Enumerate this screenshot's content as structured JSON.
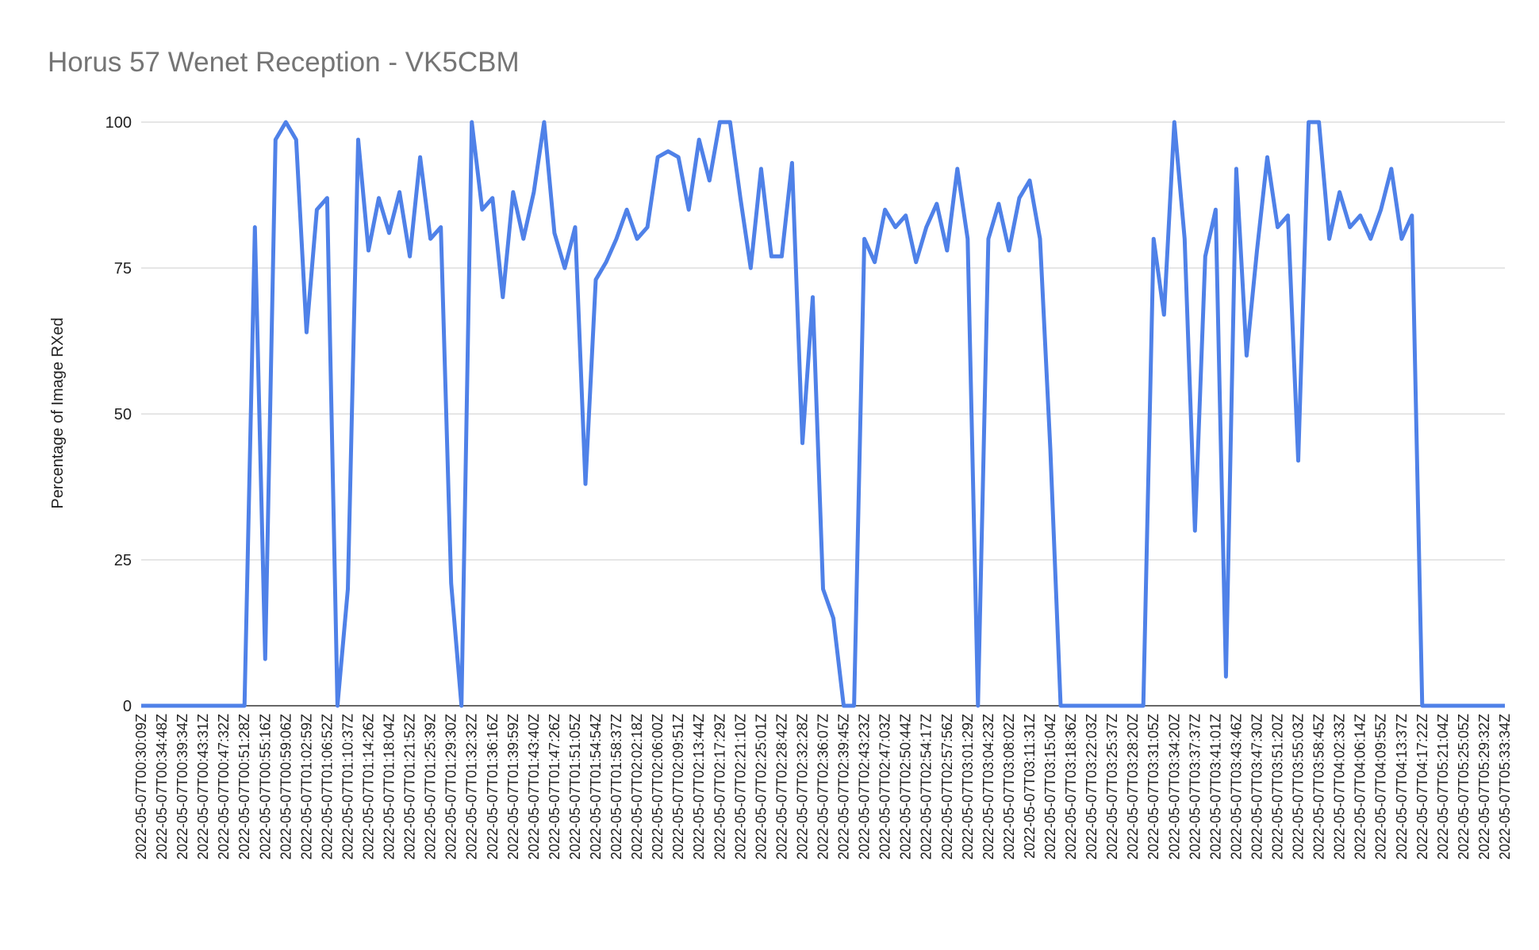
{
  "chart_data": {
    "type": "line",
    "title": "Horus 57 Wenet Reception - VK5CBM",
    "y_label": "Percentage of Image RXed",
    "categories": [
      "2022-05-07T00:30:09Z",
      null,
      "2022-05-07T00:34:48Z",
      null,
      "2022-05-07T00:39:34Z",
      null,
      "2022-05-07T00:43:31Z",
      null,
      "2022-05-07T00:47:32Z",
      null,
      "2022-05-07T00:51:28Z",
      null,
      "2022-05-07T00:55:16Z",
      null,
      "2022-05-07T00:59:06Z",
      null,
      "2022-05-07T01:02:59Z",
      null,
      "2022-05-07T01:06:52Z",
      null,
      "2022-05-07T01:10:37Z",
      null,
      "2022-05-07T01:14:26Z",
      null,
      "2022-05-07T01:18:04Z",
      null,
      "2022-05-07T01:21:52Z",
      null,
      "2022-05-07T01:25:39Z",
      null,
      "2022-05-07T01:29:30Z",
      null,
      "2022-05-07T01:32:32Z",
      null,
      "2022-05-07T01:36:16Z",
      null,
      "2022-05-07T01:39:59Z",
      null,
      "2022-05-07T01:43:40Z",
      null,
      "2022-05-07T01:47:26Z",
      null,
      "2022-05-07T01:51:05Z",
      null,
      "2022-05-07T01:54:54Z",
      null,
      "2022-05-07T01:58:37Z",
      null,
      "2022-05-07T02:02:18Z",
      null,
      "2022-05-07T02:06:00Z",
      null,
      "2022-05-07T02:09:51Z",
      null,
      "2022-05-07T02:13:44Z",
      null,
      "2022-05-07T02:17:29Z",
      null,
      "2022-05-07T02:21:10Z",
      null,
      "2022-05-07T02:25:01Z",
      null,
      "2022-05-07T02:28:42Z",
      null,
      "2022-05-07T02:32:28Z",
      null,
      "2022-05-07T02:36:07Z",
      null,
      "2022-05-07T02:39:45Z",
      null,
      "2022-05-07T02:43:23Z",
      null,
      "2022-05-07T02:47:03Z",
      null,
      "2022-05-07T02:50:44Z",
      null,
      "2022-05-07T02:54:17Z",
      null,
      "2022-05-07T02:57:56Z",
      null,
      "2022-05-07T03:01:29Z",
      null,
      "2022-05-07T03:04:23Z",
      null,
      "2022-05-07T03:08:02Z",
      null,
      "2022-05-07T03:11:31Z",
      null,
      "2022-05-07T03:15:04Z",
      null,
      "2022-05-07T03:18:36Z",
      null,
      "2022-05-07T03:22:03Z",
      null,
      "2022-05-07T03:25:37Z",
      null,
      "2022-05-07T03:28:20Z",
      null,
      "2022-05-07T03:31:05Z",
      null,
      "2022-05-07T03:34:20Z",
      null,
      "2022-05-07T03:37:37Z",
      null,
      "2022-05-07T03:41:01Z",
      null,
      "2022-05-07T03:43:46Z",
      null,
      "2022-05-07T03:47:30Z",
      null,
      "2022-05-07T03:51:20Z",
      null,
      "2022-05-07T03:55:03Z",
      null,
      "2022-05-07T03:58:45Z",
      null,
      "2022-05-07T04:02:33Z",
      null,
      "2022-05-07T04:06:14Z",
      null,
      "2022-05-07T04:09:55Z",
      null,
      "2022-05-07T04:13:37Z",
      null,
      "2022-05-07T04:17:22Z",
      null,
      "2022-05-07T05:21:04Z",
      null,
      "2022-05-07T05:25:05Z",
      null,
      "2022-05-07T05:29:32Z",
      null,
      "2022-05-07T05:33:34Z"
    ],
    "series": [
      {
        "name": "Percentage of Image RXed",
        "color": "#4f81e8",
        "values": [
          0,
          0,
          0,
          0,
          0,
          0,
          0,
          0,
          0,
          0,
          0,
          82,
          8,
          97,
          100,
          97,
          64,
          85,
          87,
          0,
          20,
          97,
          78,
          87,
          81,
          88,
          77,
          94,
          80,
          82,
          21,
          0,
          100,
          85,
          87,
          70,
          88,
          80,
          88,
          100,
          81,
          75,
          82,
          38,
          73,
          76,
          80,
          85,
          80,
          82,
          94,
          95,
          94,
          85,
          97,
          90,
          100,
          100,
          87,
          75,
          92,
          77,
          77,
          93,
          45,
          70,
          20,
          15,
          0,
          0,
          80,
          76,
          85,
          82,
          84,
          76,
          82,
          86,
          78,
          92,
          80,
          0,
          80,
          86,
          78,
          87,
          90,
          80,
          44,
          0,
          0,
          0,
          0,
          0,
          0,
          0,
          0,
          0,
          80,
          67,
          100,
          80,
          30,
          77,
          85,
          5,
          92,
          60,
          78,
          94,
          82,
          84,
          42,
          100,
          100,
          80,
          88,
          82,
          84,
          80,
          85,
          92,
          80,
          84,
          0,
          0,
          0,
          0,
          0,
          0,
          0,
          0,
          0
        ]
      }
    ],
    "ylim": [
      0,
      100
    ],
    "yticks": [
      0,
      25,
      50,
      75,
      100
    ],
    "grid": true
  }
}
